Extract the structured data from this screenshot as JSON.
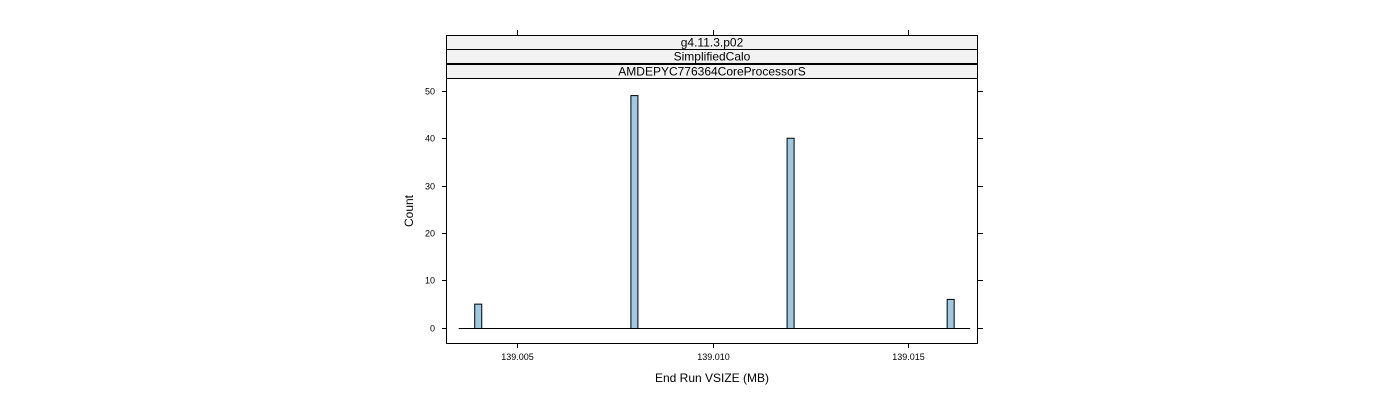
{
  "chart_data": {
    "type": "bar",
    "subtype": "histogram",
    "strips": [
      "g4.11.3.p02",
      "SimplifiedCalo",
      "AMDEPYC776364CoreProcessorS"
    ],
    "xlabel": "End Run VSIZE (MB)",
    "ylabel": "Count",
    "xlim": [
      139.0032,
      139.0168
    ],
    "ylim": [
      -3.2,
      52.5
    ],
    "x_ticks": [
      139.005,
      139.01,
      139.015
    ],
    "x_tick_labels": [
      "139.005",
      "139.010",
      "139.015"
    ],
    "y_ticks": [
      0,
      10,
      20,
      30,
      40,
      50
    ],
    "y_tick_labels": [
      "0",
      "10",
      "20",
      "30",
      "40",
      "50"
    ],
    "baseline_range": [
      139.0035,
      139.0166
    ],
    "bin_width": 0.00018,
    "bins": [
      {
        "x": 139.004,
        "count": 5
      },
      {
        "x": 139.008,
        "count": 49
      },
      {
        "x": 139.012,
        "count": 40
      },
      {
        "x": 139.0161,
        "count": 6
      }
    ],
    "colors": {
      "bar_fill": "#9ecae1",
      "bar_stroke": "#000000",
      "strip_fill": "#f2f2f2",
      "frame": "#000000"
    },
    "grid": false,
    "legend": "none"
  }
}
